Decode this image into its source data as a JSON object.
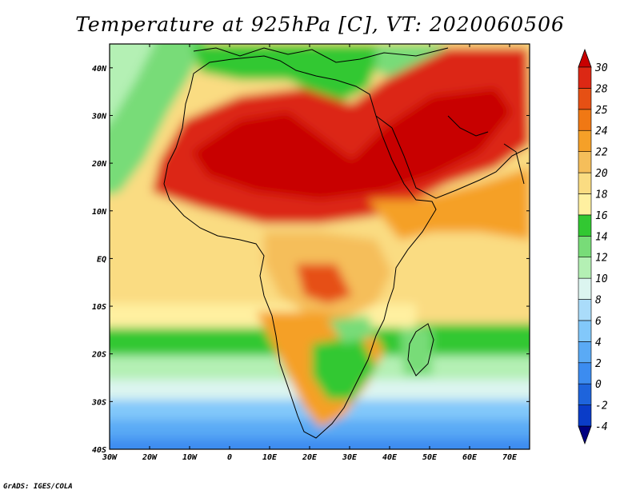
{
  "title": "Temperature at 925hPa [C], VT: 2020060506",
  "credit": "GrADS: IGES/COLA",
  "map": {
    "projection": "latlon",
    "lon_range": [
      -30,
      75
    ],
    "lat_range": [
      -40,
      45
    ],
    "lon_ticks": [
      {
        "value": -30,
        "label": "30W"
      },
      {
        "value": -20,
        "label": "20W"
      },
      {
        "value": -10,
        "label": "10W"
      },
      {
        "value": 0,
        "label": "0"
      },
      {
        "value": 10,
        "label": "10E"
      },
      {
        "value": 20,
        "label": "20E"
      },
      {
        "value": 30,
        "label": "30E"
      },
      {
        "value": 40,
        "label": "40E"
      },
      {
        "value": 50,
        "label": "50E"
      },
      {
        "value": 60,
        "label": "60E"
      },
      {
        "value": 70,
        "label": "70E"
      }
    ],
    "lat_ticks": [
      {
        "value": 40,
        "label": "40N"
      },
      {
        "value": 30,
        "label": "30N"
      },
      {
        "value": 20,
        "label": "20N"
      },
      {
        "value": 10,
        "label": "10N"
      },
      {
        "value": 0,
        "label": "EQ"
      },
      {
        "value": -10,
        "label": "10S"
      },
      {
        "value": -20,
        "label": "20S"
      },
      {
        "value": -30,
        "label": "30S"
      },
      {
        "value": -40,
        "label": "40S"
      }
    ]
  },
  "colorbar": {
    "levels": [
      "-4",
      "-2",
      "0",
      "2",
      "4",
      "6",
      "8",
      "10",
      "12",
      "14",
      "16",
      "18",
      "20",
      "22",
      "24",
      "25",
      "28",
      "30"
    ],
    "colors": [
      "#000080",
      "#0a3cc8",
      "#1e64dc",
      "#3c8cf0",
      "#5aaaf5",
      "#82c8fa",
      "#aadcfa",
      "#dcf5f0",
      "#b4f0b4",
      "#78dc78",
      "#32c832",
      "#fff0a0",
      "#fadc82",
      "#f5be5a",
      "#f5a028",
      "#f07814",
      "#e65014",
      "#dc2814",
      "#c80000"
    ]
  },
  "colors": {
    "ocean_default": "#a8d8f5",
    "coastline": "#000000"
  }
}
